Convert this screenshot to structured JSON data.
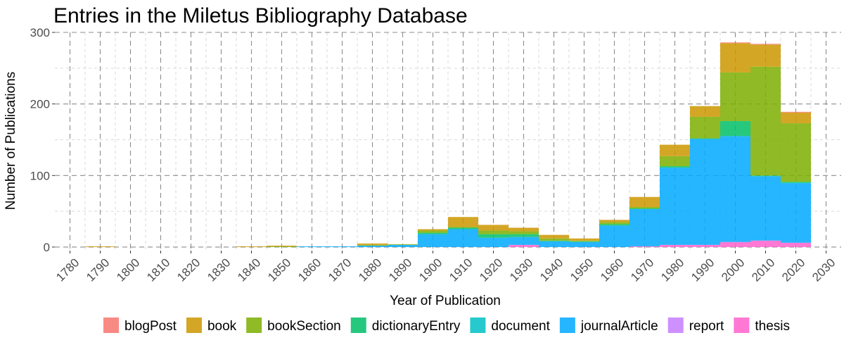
{
  "chart_data": {
    "type": "bar",
    "stacked": true,
    "title": "Entries in the Miletus Bibliography Database",
    "xlabel": "Year of Publication",
    "ylabel": "Number of Publications",
    "xlim": [
      1775,
      2035
    ],
    "ylim": [
      -5,
      300
    ],
    "x_ticks": [
      1780,
      1790,
      1800,
      1810,
      1820,
      1830,
      1840,
      1850,
      1860,
      1870,
      1880,
      1890,
      1900,
      1910,
      1920,
      1930,
      1940,
      1950,
      1960,
      1970,
      1980,
      1990,
      2000,
      2010,
      2020,
      2030
    ],
    "y_ticks": [
      0,
      100,
      200,
      300
    ],
    "grid": true,
    "legend_position": "bottom",
    "bin_width": 10,
    "x": [
      1790,
      1840,
      1850,
      1860,
      1870,
      1880,
      1890,
      1900,
      1910,
      1920,
      1930,
      1940,
      1950,
      1960,
      1970,
      1980,
      1990,
      2000,
      2010,
      2020
    ],
    "series": [
      {
        "name": "blogPost",
        "color": "#F8766D",
        "values": [
          0,
          0,
          0,
          0,
          0,
          0,
          0,
          0,
          0,
          0,
          0,
          0,
          0,
          0,
          0,
          0,
          0,
          1,
          1,
          1
        ]
      },
      {
        "name": "book",
        "color": "#CD9600",
        "values": [
          1,
          1,
          1,
          0,
          0,
          2,
          0,
          2,
          14,
          8,
          5,
          5,
          3,
          3,
          14,
          16,
          15,
          41,
          31,
          15
        ]
      },
      {
        "name": "bookSection",
        "color": "#7CAE00",
        "values": [
          0,
          0,
          1,
          0,
          0,
          1,
          1,
          3,
          1,
          5,
          4,
          3,
          1,
          3,
          2,
          14,
          30,
          68,
          152,
          82
        ]
      },
      {
        "name": "dictionaryEntry",
        "color": "#00BE67",
        "values": [
          0,
          0,
          0,
          0,
          0,
          0,
          0,
          2,
          2,
          5,
          4,
          1,
          1,
          2,
          1,
          2,
          1,
          21,
          1,
          1
        ]
      },
      {
        "name": "document",
        "color": "#00BFC4",
        "values": [
          0,
          0,
          0,
          0,
          0,
          0,
          0,
          0,
          0,
          0,
          0,
          0,
          0,
          0,
          0,
          0,
          0,
          0,
          0,
          1
        ]
      },
      {
        "name": "journalArticle",
        "color": "#00A9FF",
        "values": [
          0,
          0,
          0,
          1,
          1,
          2,
          3,
          18,
          25,
          13,
          11,
          8,
          7,
          30,
          52,
          108,
          148,
          148,
          90,
          83
        ]
      },
      {
        "name": "report",
        "color": "#C77CFF",
        "values": [
          0,
          0,
          0,
          0,
          0,
          0,
          0,
          0,
          0,
          0,
          0,
          0,
          0,
          0,
          0,
          0,
          0,
          0,
          0,
          0
        ]
      },
      {
        "name": "thesis",
        "color": "#FF61CC",
        "values": [
          0,
          0,
          0,
          0,
          0,
          0,
          0,
          0,
          0,
          0,
          3,
          0,
          0,
          0,
          1,
          3,
          3,
          7,
          9,
          6
        ]
      }
    ],
    "colors": {
      "background": "#ffffff",
      "grid_major": "#8c8c8c",
      "grid_minor": "#d9d9d9",
      "tick_text": "#4d4d4d"
    }
  }
}
